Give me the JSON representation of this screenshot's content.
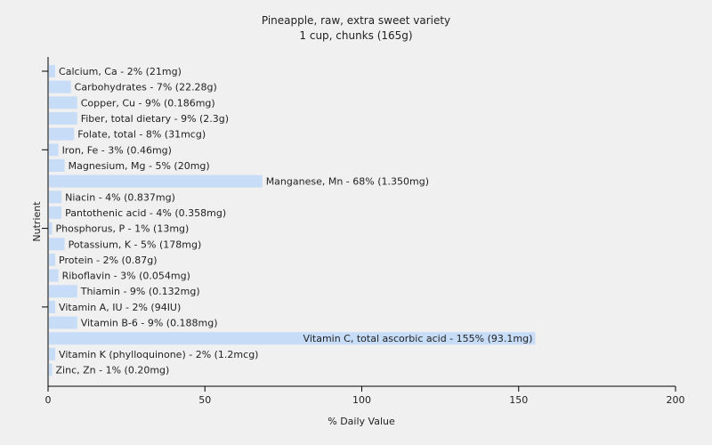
{
  "chart_data": {
    "type": "bar",
    "orientation": "horizontal",
    "title": "Pineapple, raw, extra sweet variety",
    "subtitle": "1 cup, chunks (165g)",
    "xlabel": "% Daily Value",
    "ylabel": "Nutrient",
    "xlim": [
      0,
      200
    ],
    "xticks": [
      0,
      50,
      100,
      150,
      200
    ],
    "grid": false,
    "legend": "none",
    "bar_color": "#c7dcf7",
    "categories": [
      "Calcium, Ca - 2% (21mg)",
      "Carbohydrates - 7% (22.28g)",
      "Copper, Cu - 9% (0.186mg)",
      "Fiber, total dietary - 9% (2.3g)",
      "Folate, total - 8% (31mcg)",
      "Iron, Fe - 3% (0.46mg)",
      "Magnesium, Mg - 5% (20mg)",
      "Manganese, Mn - 68% (1.350mg)",
      "Niacin - 4% (0.837mg)",
      "Pantothenic acid - 4% (0.358mg)",
      "Phosphorus, P - 1% (13mg)",
      "Potassium, K - 5% (178mg)",
      "Protein - 2% (0.87g)",
      "Riboflavin - 3% (0.054mg)",
      "Thiamin - 9% (0.132mg)",
      "Vitamin A, IU - 2% (94IU)",
      "Vitamin B-6 - 9% (0.188mg)",
      "Vitamin C, total ascorbic acid - 155% (93.1mg)",
      "Vitamin K (phylloquinone) - 2% (1.2mcg)",
      "Zinc, Zn - 1% (0.20mg)"
    ],
    "values": [
      2,
      7,
      9,
      9,
      8,
      3,
      5,
      68,
      4,
      4,
      1,
      5,
      2,
      3,
      9,
      2,
      9,
      155,
      2,
      1
    ]
  }
}
